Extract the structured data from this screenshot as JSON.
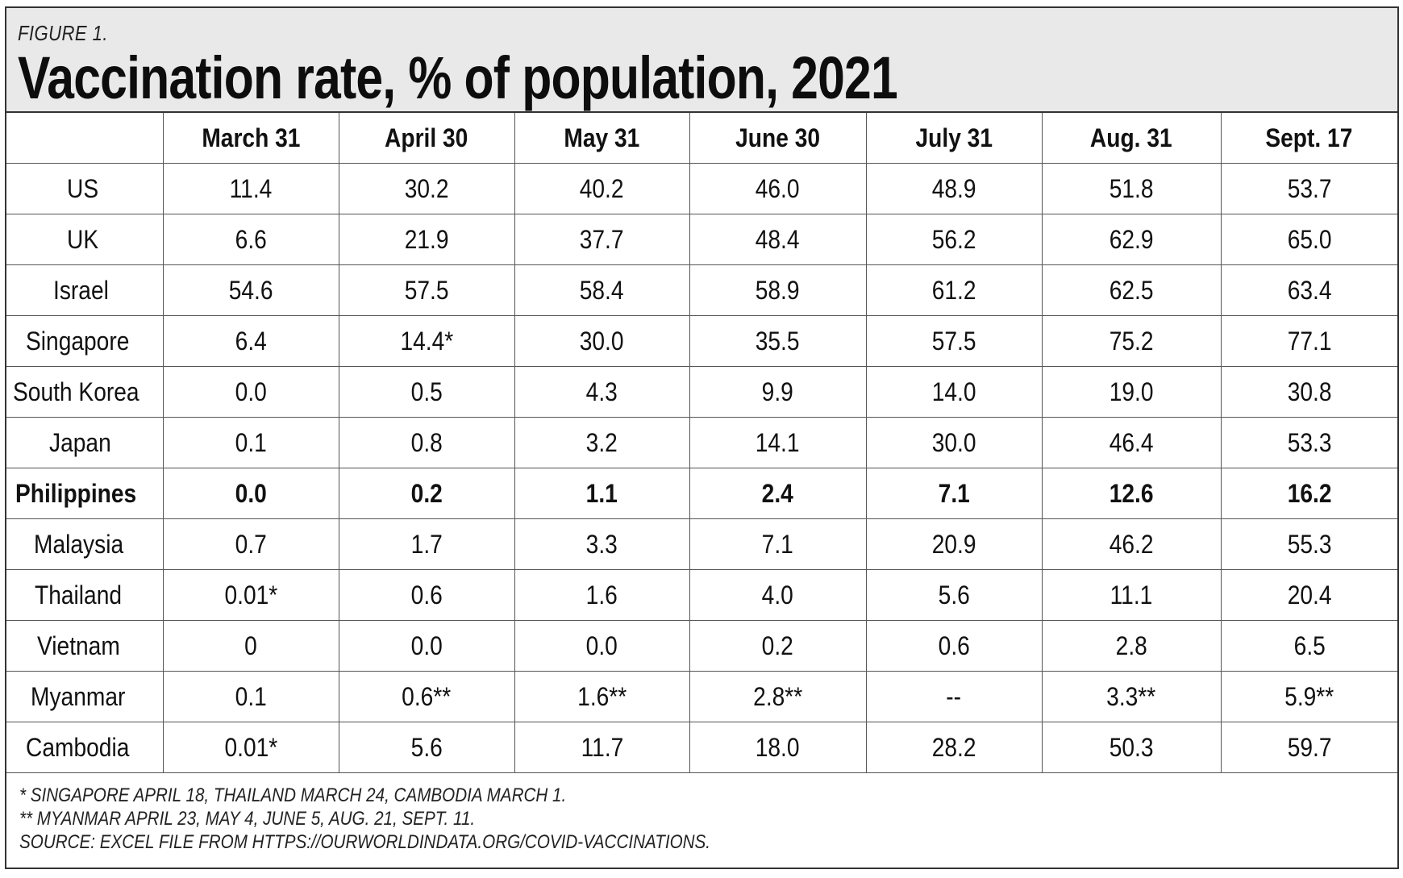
{
  "chart_data": {
    "type": "table",
    "figure_label": "FIGURE 1.",
    "title": "Vaccination rate, % of population, 2021",
    "columns": [
      "March 31",
      "April 30",
      "May 31",
      "June 30",
      "July 31",
      "Aug. 31",
      "Sept. 17"
    ],
    "rows": [
      {
        "country": "US",
        "values": [
          "11.4",
          "30.2",
          "40.2",
          "46.0",
          "48.9",
          "51.8",
          "53.7"
        ],
        "bold": false
      },
      {
        "country": "UK",
        "values": [
          "6.6",
          "21.9",
          "37.7",
          "48.4",
          "56.2",
          "62.9",
          "65.0"
        ],
        "bold": false
      },
      {
        "country": "Israel",
        "values": [
          "54.6",
          "57.5",
          "58.4",
          "58.9",
          "61.2",
          "62.5",
          "63.4"
        ],
        "bold": false
      },
      {
        "country": "Singapore",
        "values": [
          "6.4",
          "14.4*",
          "30.0",
          "35.5",
          "57.5",
          "75.2",
          "77.1"
        ],
        "bold": false
      },
      {
        "country": "South Korea",
        "values": [
          "0.0",
          "0.5",
          "4.3",
          "9.9",
          "14.0",
          "19.0",
          "30.8"
        ],
        "bold": false
      },
      {
        "country": "Japan",
        "values": [
          "0.1",
          "0.8",
          "3.2",
          "14.1",
          "30.0",
          "46.4",
          "53.3"
        ],
        "bold": false
      },
      {
        "country": "Philippines",
        "values": [
          "0.0",
          "0.2",
          "1.1",
          "2.4",
          "7.1",
          "12.6",
          "16.2"
        ],
        "bold": true
      },
      {
        "country": "Malaysia",
        "values": [
          "0.7",
          "1.7",
          "3.3",
          "7.1",
          "20.9",
          "46.2",
          "55.3"
        ],
        "bold": false
      },
      {
        "country": "Thailand",
        "values": [
          "0.01*",
          "0.6",
          "1.6",
          "4.0",
          "5.6",
          "11.1",
          "20.4"
        ],
        "bold": false
      },
      {
        "country": "Vietnam",
        "values": [
          "0",
          "0.0",
          "0.0",
          "0.2",
          "0.6",
          "2.8",
          "6.5"
        ],
        "bold": false
      },
      {
        "country": "Myanmar",
        "values": [
          "0.1",
          "0.6**",
          "1.6**",
          "2.8**",
          "--",
          "3.3**",
          "5.9**"
        ],
        "bold": false
      },
      {
        "country": "Cambodia",
        "values": [
          "0.01*",
          "5.6",
          "11.7",
          "18.0",
          "28.2",
          "50.3",
          "59.7"
        ],
        "bold": false
      }
    ],
    "footnotes": [
      "* SINGAPORE APRIL 18, THAILAND MARCH 24, CAMBODIA MARCH 1.",
      "** MYANMAR APRIL 23, MAY 4, JUNE 5, AUG. 21, SEPT. 11.",
      "SOURCE: EXCEL FILE FROM HTTPS://OURWORLDINDATA.ORG/COVID-VACCINATIONS."
    ]
  }
}
